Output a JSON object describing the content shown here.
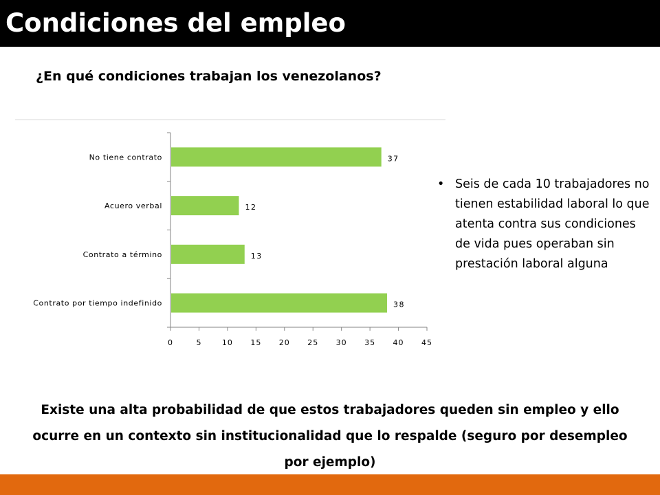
{
  "slide": {
    "title": "Condiciones del empleo",
    "question": "¿En qué condiciones trabajan los venezolanos?",
    "bullet": "Seis de cada 10 trabajadores no tienen estabilidad laboral lo que atenta contra sus condiciones de vida pues operaban sin prestación laboral alguna",
    "conclusion": "Existe una alta probabilidad de que estos trabajadores queden sin empleo y ello ocurre en un contexto sin institucionalidad que lo respalde (seguro por desempleo por ejemplo)"
  },
  "colors": {
    "title_bar": "#000000",
    "bar": "#92d050",
    "footer": "#e2690e"
  },
  "chart_data": {
    "type": "bar",
    "orientation": "horizontal",
    "categories": [
      "No tiene contrato",
      "Acuero verbal",
      "Contrato a término",
      "Contrato por tiempo indefinido"
    ],
    "values": [
      37,
      12,
      13,
      38
    ],
    "xlim": [
      0,
      45
    ],
    "xticks": [
      0,
      5,
      10,
      15,
      20,
      25,
      30,
      35,
      40,
      45
    ],
    "grid": false,
    "legend": "none"
  }
}
